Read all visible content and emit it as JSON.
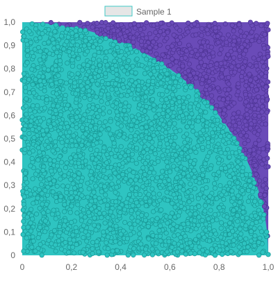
{
  "chart_data": {
    "type": "scatter",
    "title": "",
    "xlabel": "",
    "ylabel": "",
    "xlim": [
      0,
      1
    ],
    "ylim": [
      0,
      1
    ],
    "x_ticks": [
      "0",
      "0,2",
      "0,4",
      "0,6",
      "0,8",
      "1,0"
    ],
    "y_ticks": [
      "0",
      "0,1",
      "0,2",
      "0,3",
      "0,4",
      "0,5",
      "0,6",
      "0,7",
      "0,8",
      "0,9",
      "1,0"
    ],
    "grid": false,
    "legend": {
      "position": "top-center",
      "entries": [
        "Sample 1"
      ]
    },
    "description_of_data": "uniform random points on unit square; points inside the quarter circle x^2+y^2<=1 colored teal, outside colored purple",
    "series": [
      {
        "name": "Sample 1",
        "region": "inside",
        "color": "#2ec4c1",
        "stroke": "#1a9a98"
      },
      {
        "region": "outside",
        "color": "#6a4bb8",
        "stroke": "#4f3596"
      }
    ]
  },
  "legend_swatch": {
    "fill": "#e6e6e6",
    "stroke": "#3fc9c6"
  }
}
